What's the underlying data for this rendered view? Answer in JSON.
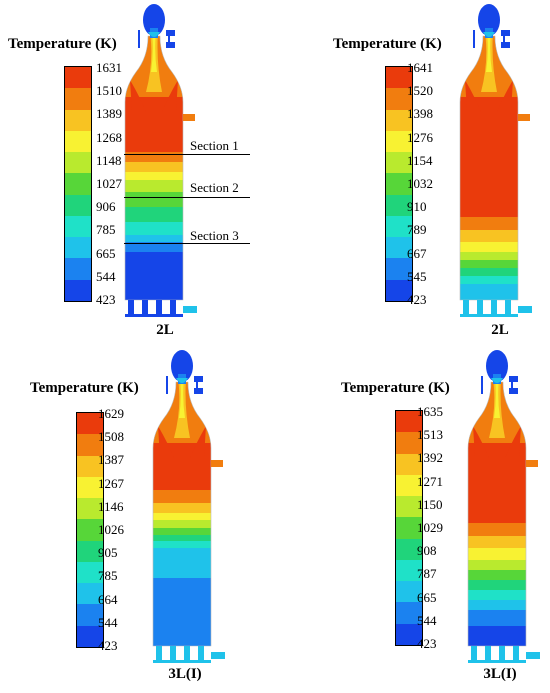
{
  "colorbar_title": "Temperature (K)",
  "colorbar_colors": [
    "#ea3b0c",
    "#f17d0f",
    "#f8c322",
    "#f8f232",
    "#b9ea2e",
    "#57d639",
    "#20d47b",
    "#1fe1c8",
    "#1fc2ea",
    "#1b82f0",
    "#1545e8"
  ],
  "panels": [
    {
      "caption": "2L",
      "ticks": [
        "1631",
        "1510",
        "1389",
        "1268",
        "1148",
        "1027",
        "906",
        "785",
        "665",
        "544",
        "423"
      ],
      "sections": [
        "Section 1",
        "Section 2",
        "Section 3"
      ]
    },
    {
      "caption": "2L",
      "ticks": [
        "1641",
        "1520",
        "1398",
        "1276",
        "1154",
        "1032",
        "910",
        "789",
        "667",
        "545",
        "423"
      ]
    },
    {
      "caption": "3L(I)",
      "ticks": [
        "1629",
        "1508",
        "1387",
        "1267",
        "1146",
        "1026",
        "905",
        "785",
        "664",
        "544",
        "423"
      ]
    },
    {
      "caption": "3L(I)",
      "ticks": [
        "1635",
        "1513",
        "1392",
        "1271",
        "1150",
        "1029",
        "908",
        "787",
        "665",
        "544",
        "423"
      ]
    }
  ]
}
